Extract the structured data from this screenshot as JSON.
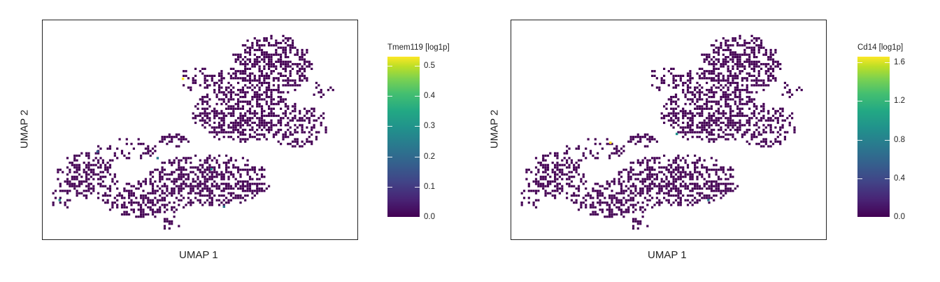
{
  "chart_data": [
    {
      "type": "scatter",
      "title": "",
      "xlabel": "UMAP 1",
      "ylabel": "UMAP 2",
      "colorbar": {
        "title": "Tmem119 [log1p]",
        "range": [
          0,
          0.53
        ],
        "ticks": [
          "0.0",
          "0.1",
          "0.2",
          "0.3",
          "0.4",
          "0.5"
        ],
        "tick_values": [
          0.0,
          0.1,
          0.2,
          0.3,
          0.4,
          0.5
        ],
        "colormap": "viridis"
      },
      "highlight_points": [
        {
          "x": 0.44,
          "y": 0.74,
          "value": 0.53
        },
        {
          "x": 0.53,
          "y": 0.33,
          "value": 0.25
        },
        {
          "x": 0.36,
          "y": 0.38,
          "value": 0.22
        },
        {
          "x": 0.17,
          "y": 0.41,
          "value": 0.18
        },
        {
          "x": 0.57,
          "y": 0.16,
          "value": 0.2
        },
        {
          "x": 0.05,
          "y": 0.19,
          "value": 0.24
        }
      ]
    },
    {
      "type": "scatter",
      "title": "",
      "xlabel": "UMAP 1",
      "ylabel": "UMAP 2",
      "colorbar": {
        "title": "Cd14 [log1p]",
        "range": [
          0,
          1.66
        ],
        "ticks": [
          "0.0",
          "0.4",
          "0.8",
          "1.2",
          "1.6"
        ],
        "tick_values": [
          0.0,
          0.4,
          0.8,
          1.2,
          1.6
        ],
        "colormap": "viridis"
      },
      "highlight_points": [
        {
          "x": 0.31,
          "y": 0.45,
          "value": 1.6
        },
        {
          "x": 0.52,
          "y": 0.49,
          "value": 0.9
        },
        {
          "x": 0.62,
          "y": 0.19,
          "value": 0.6
        }
      ]
    }
  ],
  "colors": {
    "background": "#440154",
    "axis": "#222222"
  }
}
